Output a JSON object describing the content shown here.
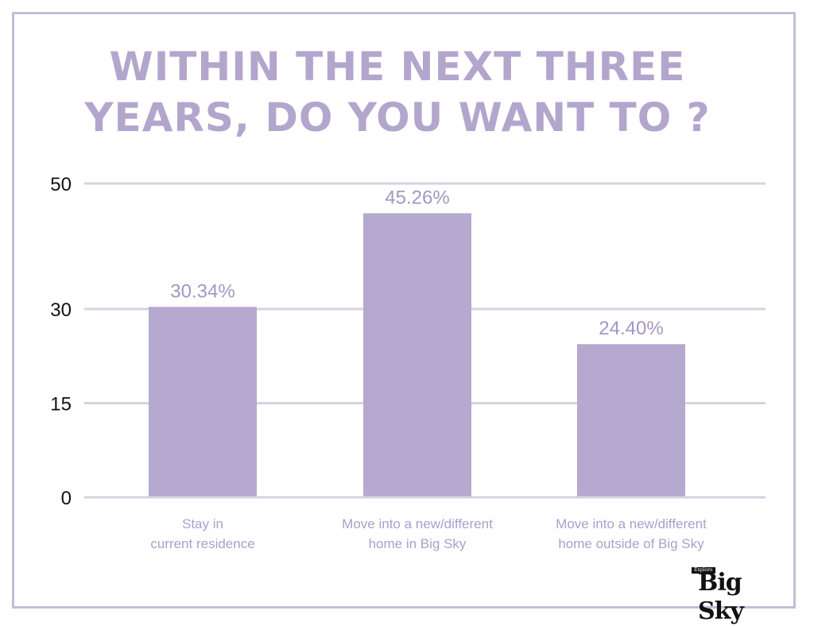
{
  "page": {
    "title_line1": "WITHIN THE NEXT THREE",
    "title_line2": "YEARS, DO YOU WANT TO ?"
  },
  "chart_data": {
    "type": "bar",
    "title": "WITHIN THE NEXT THREE YEARS, DO YOU WANT TO ?",
    "xlabel": "",
    "ylabel": "",
    "categories": [
      [
        "Stay in",
        "current residence"
      ],
      [
        "Move into a new/different",
        "home in Big Sky"
      ],
      [
        "Move into a new/different",
        "home outside of Big Sky"
      ]
    ],
    "values": [
      30.34,
      45.26,
      24.4
    ],
    "data_labels": [
      "30.34%",
      "45.26%",
      "24.40%"
    ],
    "y_ticks": [
      0,
      15,
      30,
      50
    ],
    "ylim": [
      0,
      50
    ],
    "grid": true,
    "legend": "none",
    "colors": {
      "bar": "#b5a9cf",
      "title": "#b3a6cd",
      "data_label": "#a297c3",
      "category_label": "#ab9fcb",
      "gridline": "#d7d2df",
      "axis_text": "#111111",
      "frame": "#c4bcd9"
    }
  },
  "logo": {
    "tag": "Explore",
    "name": "Big Sky"
  }
}
